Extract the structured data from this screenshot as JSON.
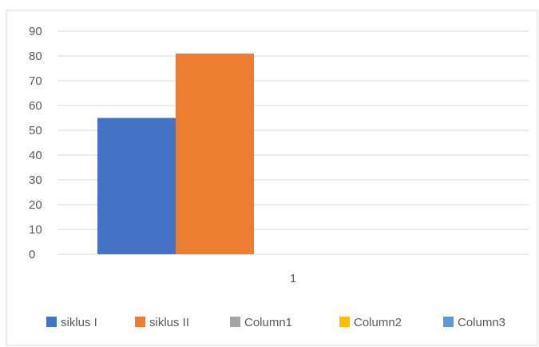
{
  "chart_data": {
    "type": "bar",
    "title": "",
    "xlabel": "",
    "ylabel": "",
    "categories": [
      "1"
    ],
    "ylim": [
      0,
      90
    ],
    "yticks": [
      0,
      10,
      20,
      30,
      40,
      50,
      60,
      70,
      80,
      90
    ],
    "grid": true,
    "legend_position": "bottom",
    "series": [
      {
        "name": "siklus I",
        "values": [
          55
        ],
        "color": "#4472C4"
      },
      {
        "name": "siklus II",
        "values": [
          81
        ],
        "color": "#ED7D31"
      },
      {
        "name": "Column1",
        "values": [
          0
        ],
        "color": "#A5A5A5"
      },
      {
        "name": "Column2",
        "values": [
          0
        ],
        "color": "#FFC000"
      },
      {
        "name": "Column3",
        "values": [
          0
        ],
        "color": "#5B9BD5"
      }
    ]
  },
  "colors": {
    "gridline": "#d9d9d9",
    "frame": "#d9d9d9",
    "text": "#595959"
  }
}
